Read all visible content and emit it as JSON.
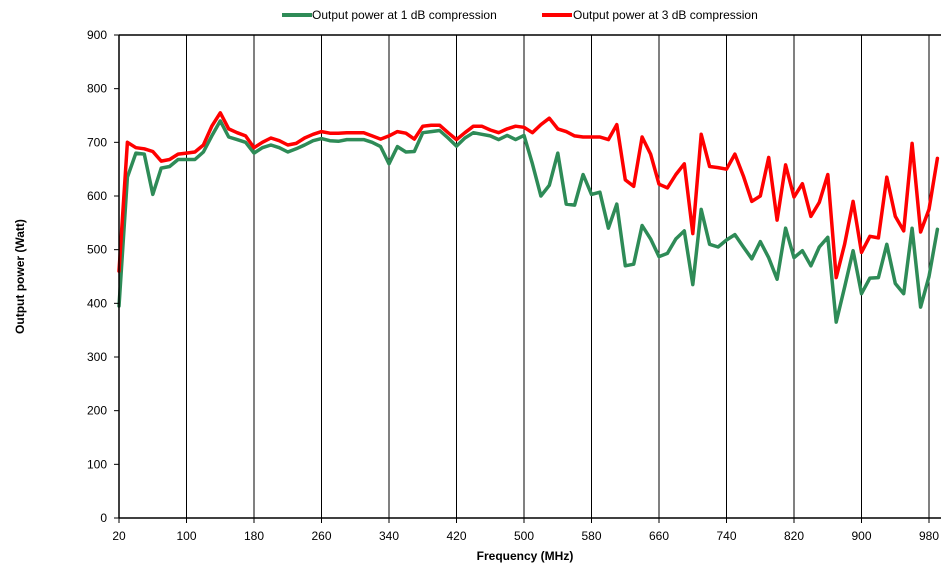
{
  "chart_data": {
    "type": "line",
    "title": "",
    "xlabel": "Frequency  (MHz)",
    "ylabel": "Output power (Watt)",
    "xlim": [
      20,
      990
    ],
    "ylim": [
      0,
      900
    ],
    "x_ticks": [
      20,
      100,
      180,
      260,
      340,
      420,
      500,
      580,
      660,
      740,
      820,
      900,
      980
    ],
    "y_ticks": [
      0,
      100,
      200,
      300,
      400,
      500,
      600,
      700,
      800,
      900
    ],
    "grid": {
      "vertical": true,
      "horizontal": false
    },
    "legend_position": "top",
    "series": [
      {
        "name": "Output power at 1 dB compression",
        "color": "#2e8b57",
        "x": [
          20,
          30,
          40,
          50,
          60,
          70,
          80,
          90,
          100,
          110,
          120,
          130,
          140,
          150,
          160,
          170,
          180,
          190,
          200,
          210,
          220,
          230,
          240,
          250,
          260,
          270,
          280,
          290,
          300,
          310,
          320,
          330,
          340,
          350,
          360,
          370,
          380,
          390,
          400,
          410,
          420,
          430,
          440,
          450,
          460,
          470,
          480,
          490,
          500,
          510,
          520,
          530,
          540,
          550,
          560,
          570,
          580,
          590,
          600,
          610,
          620,
          630,
          640,
          650,
          660,
          670,
          680,
          690,
          700,
          710,
          720,
          730,
          740,
          750,
          760,
          770,
          780,
          790,
          800,
          810,
          820,
          830,
          840,
          850,
          860,
          870,
          880,
          890,
          900,
          910,
          920,
          930,
          940,
          950,
          960,
          970,
          980,
          990
        ],
        "y": [
          395,
          635,
          680,
          678,
          603,
          652,
          655,
          668,
          668,
          668,
          682,
          712,
          740,
          710,
          705,
          700,
          680,
          690,
          695,
          690,
          682,
          688,
          695,
          703,
          707,
          703,
          702,
          705,
          705,
          705,
          700,
          692,
          660,
          692,
          682,
          683,
          718,
          720,
          722,
          708,
          693,
          708,
          718,
          715,
          712,
          705,
          713,
          705,
          713,
          660,
          600,
          620,
          680,
          585,
          583,
          640,
          603,
          607,
          540,
          585,
          470,
          473,
          545,
          520,
          487,
          493,
          520,
          535,
          435,
          575,
          510,
          505,
          518,
          528,
          505,
          483,
          515,
          485,
          445,
          540,
          485,
          498,
          470,
          505,
          523,
          365,
          430,
          498,
          418,
          447,
          448,
          510,
          437,
          418,
          540,
          393,
          450,
          538
        ]
      },
      {
        "name": "Output power at 3 dB compression",
        "color": "#ff0000",
        "x": [
          20,
          30,
          40,
          50,
          60,
          70,
          80,
          90,
          100,
          110,
          120,
          130,
          140,
          150,
          160,
          170,
          180,
          190,
          200,
          210,
          220,
          230,
          240,
          250,
          260,
          270,
          280,
          290,
          300,
          310,
          320,
          330,
          340,
          350,
          360,
          370,
          380,
          390,
          400,
          410,
          420,
          430,
          440,
          450,
          460,
          470,
          480,
          490,
          500,
          510,
          520,
          530,
          540,
          550,
          560,
          570,
          580,
          590,
          600,
          610,
          620,
          630,
          640,
          650,
          660,
          670,
          680,
          690,
          700,
          710,
          720,
          730,
          740,
          750,
          760,
          770,
          780,
          790,
          800,
          810,
          820,
          830,
          840,
          850,
          860,
          870,
          880,
          890,
          900,
          910,
          920,
          930,
          940,
          950,
          960,
          970,
          980,
          990
        ],
        "y": [
          460,
          700,
          690,
          688,
          683,
          665,
          668,
          678,
          680,
          682,
          695,
          730,
          755,
          725,
          718,
          712,
          690,
          700,
          708,
          703,
          695,
          698,
          708,
          715,
          720,
          717,
          717,
          718,
          718,
          718,
          712,
          706,
          712,
          720,
          717,
          706,
          730,
          732,
          732,
          718,
          705,
          718,
          730,
          730,
          723,
          718,
          725,
          730,
          728,
          718,
          733,
          745,
          725,
          720,
          712,
          710,
          710,
          710,
          705,
          733,
          630,
          618,
          710,
          678,
          622,
          615,
          640,
          660,
          530,
          715,
          655,
          653,
          650,
          678,
          637,
          590,
          600,
          672,
          555,
          658,
          598,
          623,
          562,
          588,
          640,
          448,
          510,
          590,
          495,
          525,
          522,
          635,
          562,
          535,
          698,
          533,
          575,
          670
        ]
      }
    ]
  }
}
